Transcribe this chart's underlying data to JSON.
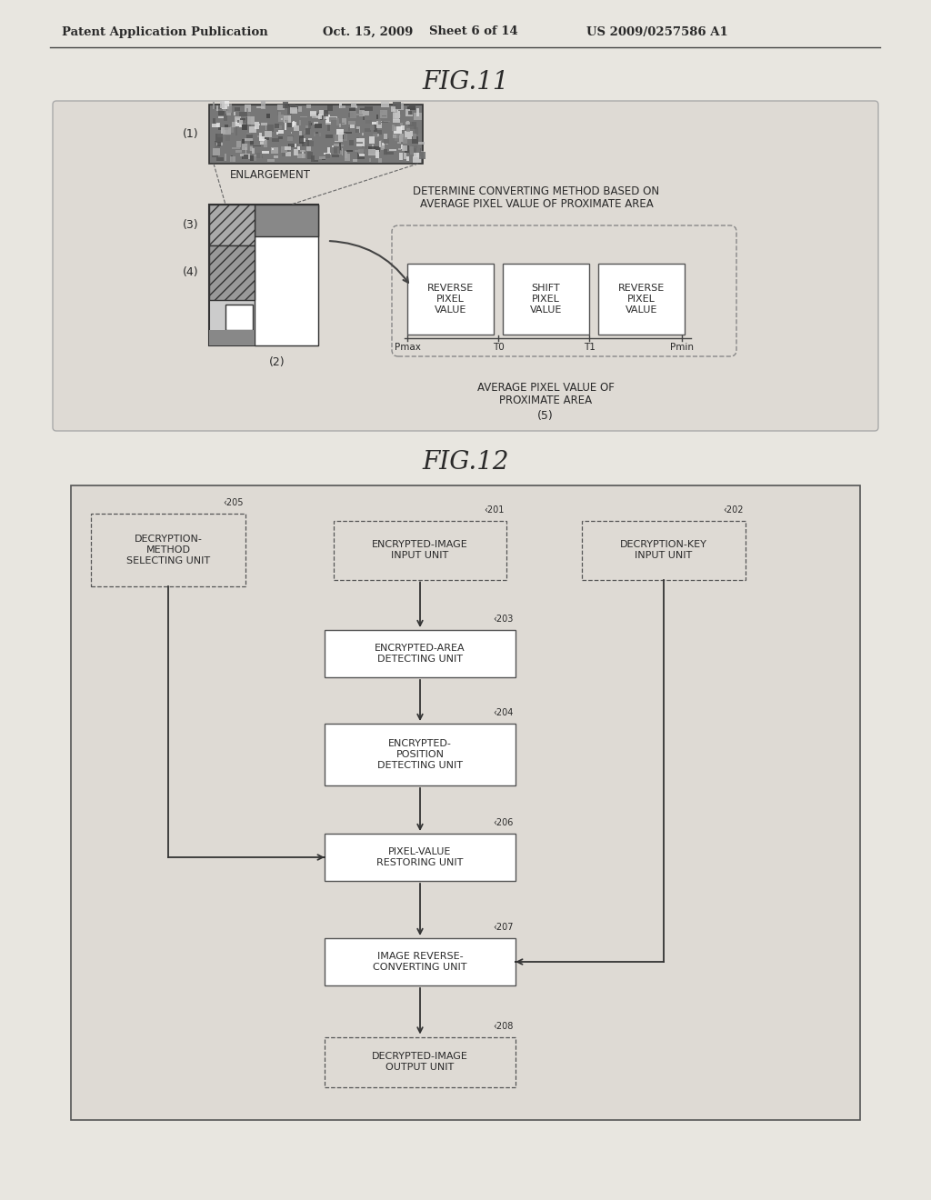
{
  "bg_color": "#e8e6e0",
  "page_bg": "#f2f0ec",
  "header_text": "Patent Application Publication",
  "header_date": "Oct. 15, 2009",
  "header_sheet": "Sheet 6 of 14",
  "header_patent": "US 2009/0257586 A1",
  "fig11_title": "FIG.11",
  "fig12_title": "FIG.12",
  "text_color": "#2a2a2a",
  "line_color": "#444444",
  "box_edge_color": "#555555",
  "fig11": {
    "label1": "(1)",
    "label2": "(2)",
    "label3": "(3)",
    "label4": "(4)",
    "label5": "(5)",
    "enlargement_text": "ENLARGEMENT",
    "determine_line1": "DETERMINE CONVERTING METHOD BASED ON",
    "determine_line2": "AVERAGE PIXEL VALUE OF PROXIMATE AREA",
    "box1_text": "REVERSE\nPIXEL\nVALUE",
    "box2_text": "SHIFT\nPIXEL\nVALUE",
    "box3_text": "REVERSE\nPIXEL\nVALUE",
    "axis_label_line1": "AVERAGE PIXEL VALUE OF",
    "axis_label_line2": "PROXIMATE AREA",
    "pmax": "Pmax",
    "t0": "T0",
    "t1": "T1",
    "pmin": "Pmin"
  }
}
